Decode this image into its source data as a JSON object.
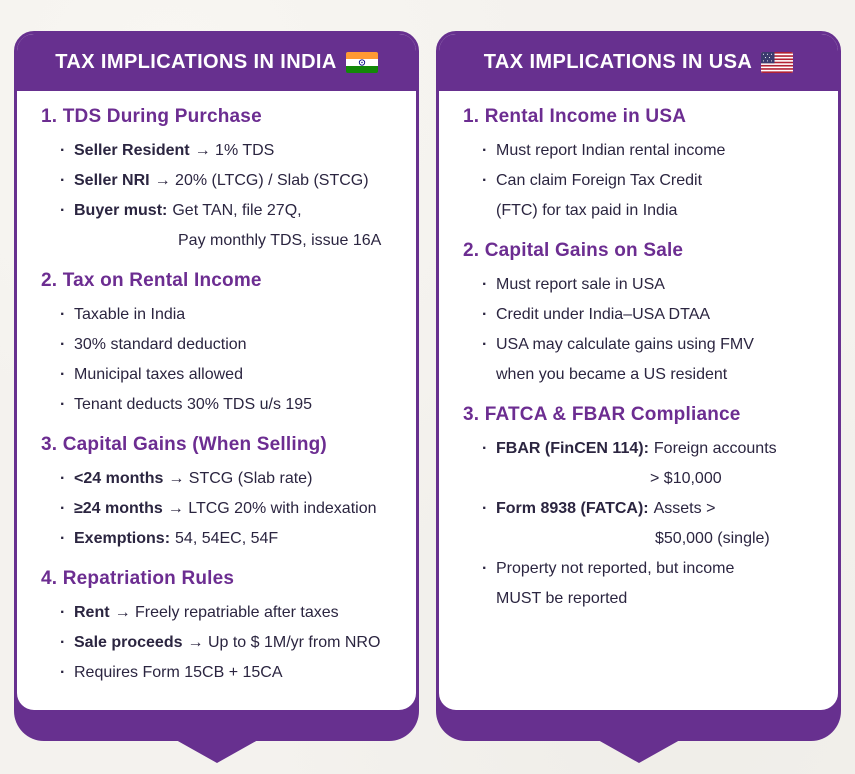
{
  "ui": {
    "bullet_char": "·",
    "colors": {
      "background": "#f4f2ee",
      "purple": "#67308f",
      "heading_purple": "#6c2d91",
      "body_text": "#2b2540",
      "card_background": "#ffffff"
    }
  },
  "cards": [
    {
      "name": "india",
      "title": "TAX IMPLICATIONS IN INDIA",
      "flag_icon": "india-flag-icon",
      "sections": [
        {
          "heading": "1. TDS During Purchase",
          "items": [
            {
              "bold": "Seller Resident",
              "text": "→ 1% TDS"
            },
            {
              "bold": "Seller NRI",
              "text": "→ 20% (LTCG) / Slab (STCG)"
            },
            {
              "bold": "Buyer must:",
              "text": "Get TAN, file 27Q,"
            },
            {
              "bold": "",
              "text": "Pay monthly TDS, issue 16A",
              "continuation": true,
              "indent": 104
            }
          ]
        },
        {
          "heading": "2. Tax on Rental Income",
          "items": [
            {
              "bold": "",
              "text": "Taxable in India"
            },
            {
              "bold": "",
              "text": "30% standard deduction"
            },
            {
              "bold": "",
              "text": "Municipal taxes allowed"
            },
            {
              "bold": "",
              "text": "Tenant deducts 30% TDS u/s 195"
            }
          ]
        },
        {
          "heading": "3. Capital Gains (When Selling)",
          "items": [
            {
              "bold": "<24 months",
              "text": "→ STCG (Slab rate)"
            },
            {
              "bold": "≥24 months",
              "text": "→ LTCG 20% with indexation"
            },
            {
              "bold": "Exemptions:",
              "text": "54, 54EC, 54F"
            }
          ]
        },
        {
          "heading": "4. Repatriation Rules",
          "items": [
            {
              "bold": "Rent",
              "text": "→ Freely repatriable after taxes"
            },
            {
              "bold": "Sale proceeds",
              "text": "→ Up to $ 1M/yr from NRO"
            },
            {
              "bold": "",
              "text": "Requires Form 15CB + 15CA"
            }
          ]
        }
      ]
    },
    {
      "name": "usa",
      "title": "TAX IMPLICATIONS IN USA",
      "flag_icon": "usa-flag-icon",
      "sections": [
        {
          "heading": "1. Rental Income in USA",
          "items": [
            {
              "bold": "",
              "text": "Must report Indian rental income"
            },
            {
              "bold": "",
              "text": "Can claim Foreign Tax Credit"
            },
            {
              "bold": "",
              "text": "(FTC) for tax paid in India",
              "continuation": true,
              "indent": 0
            }
          ]
        },
        {
          "heading": "2. Capital Gains on Sale",
          "items": [
            {
              "bold": "",
              "text": "Must report sale in USA"
            },
            {
              "bold": "",
              "text": "Credit under India–USA DTAA"
            },
            {
              "bold": "",
              "text": "USA may calculate gains using FMV"
            },
            {
              "bold": "",
              "text": "when you became a US resident",
              "continuation": true,
              "indent": 0
            }
          ]
        },
        {
          "heading": "3. FATCA & FBAR Compliance",
          "items": [
            {
              "bold": "FBAR (FinCEN 114):",
              "text": "Foreign accounts"
            },
            {
              "bold": "",
              "text": "> $10,000",
              "continuation": true,
              "indent": 154
            },
            {
              "bold": "Form 8938 (FATCA):",
              "text": "Assets >"
            },
            {
              "bold": "",
              "text": "$50,000 (single)",
              "continuation": true,
              "indent": 159
            },
            {
              "bold": "",
              "text": "Property not reported, but income"
            },
            {
              "bold": "",
              "text": "MUST be reported",
              "continuation": true,
              "indent": 0
            }
          ]
        }
      ]
    }
  ]
}
